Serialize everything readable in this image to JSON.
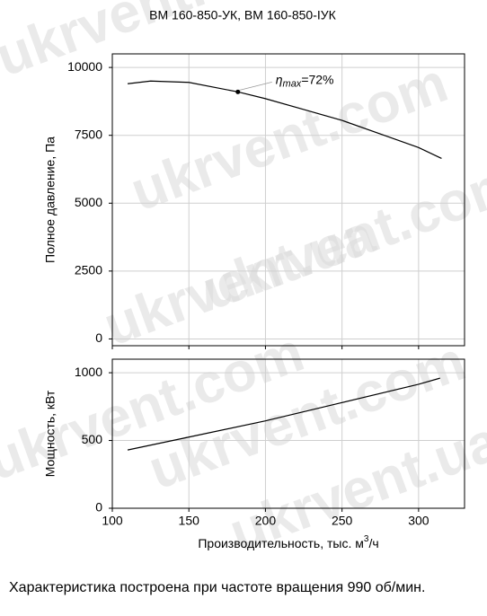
{
  "chart_data": [
    {
      "type": "line",
      "title": "ВМ 160-850-УК, ВМ 160-850-IУК",
      "ylabel": "Полное давление, Па",
      "x": [
        110,
        125,
        150,
        182,
        200,
        225,
        250,
        280,
        300,
        315
      ],
      "values": [
        9400,
        9500,
        9450,
        9100,
        8850,
        8450,
        8050,
        7450,
        7050,
        6650
      ],
      "color": "#000000",
      "xlim": [
        100,
        330
      ],
      "xticks": [
        100,
        150,
        200,
        250,
        300
      ],
      "ylim": [
        -250,
        10500
      ],
      "yticks": [
        0,
        2500,
        5000,
        7500,
        10000
      ],
      "grid": true,
      "annotation": {
        "symbol": "η",
        "subscript": "max",
        "text": "=72%",
        "x": 182,
        "y": 9100
      }
    },
    {
      "type": "line",
      "ylabel": "Мощность, кВт",
      "xlabel": "Производительность, тыс. м",
      "xlabel_superscript": "3",
      "xlabel_suffix": "/ч",
      "x": [
        110,
        150,
        200,
        250,
        300,
        314
      ],
      "values": [
        430,
        525,
        645,
        780,
        915,
        960
      ],
      "color": "#000000",
      "xlim": [
        100,
        330
      ],
      "xticks": [
        100,
        150,
        200,
        250,
        300
      ],
      "ylim": [
        0,
        1100
      ],
      "yticks": [
        0,
        500,
        1000
      ],
      "grid": true
    }
  ],
  "footnote": "Характеристика построена при частоте вращения 990 об/мин.",
  "watermark": [
    "ukrvent.com",
    "ukrvent.ua"
  ]
}
